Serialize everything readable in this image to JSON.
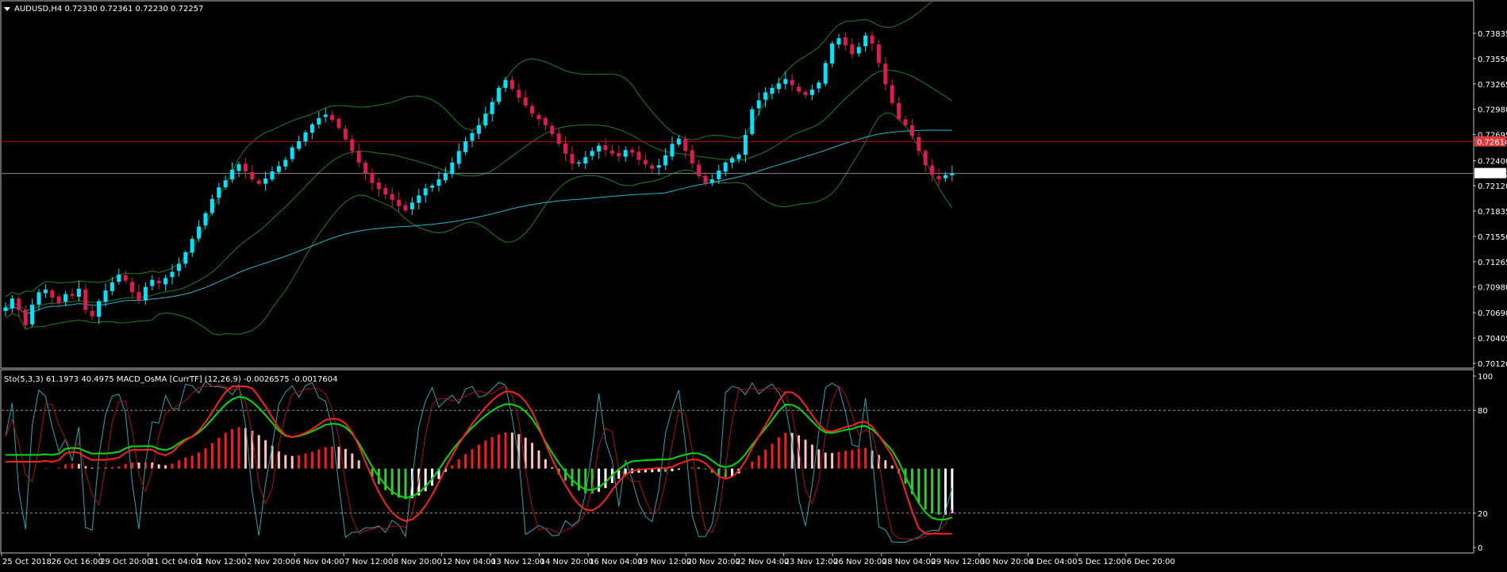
{
  "colors": {
    "background": "#000000",
    "frame": "#c0c0c0",
    "bull_candle": "#00e5ff",
    "bear_candle": "#e0194f",
    "bollinger": "#1e7f1e",
    "moving_average": "#22b8c8",
    "support_line": "#c00000",
    "price_tag": "#e03a3a",
    "macd_positive": "#ff1a1a",
    "macd_positive_light": "#ffc0c0",
    "macd_negative": "#33cc33",
    "macd_negative_light": "#ffffff",
    "signal_green": "#00dd00",
    "signal_red": "#ff2020",
    "stoch_main": "#2aa7b0",
    "stoch_signal": "#b01010"
  },
  "chart_data": [
    {
      "type": "candlestick",
      "panel": "price",
      "title": "AUDUSD,H4  0.72330 0.72361 0.72230 0.72257",
      "symbol_menu_icon": "triangle-down-icon",
      "ylim": [
        0.7012,
        0.7412
      ],
      "y_ticks": [
        "0.73835",
        "0.73550",
        "0.73265",
        "0.72980",
        "0.72695",
        "0.72400",
        "0.72120",
        "0.71835",
        "0.71550",
        "0.71265",
        "0.70980",
        "0.70690",
        "0.70405",
        "0.70120"
      ],
      "y_tick_values": [
        0.73835,
        0.7355,
        0.73265,
        0.7298,
        0.72695,
        0.724,
        0.7212,
        0.71835,
        0.7155,
        0.71265,
        0.7098,
        0.7069,
        0.70405,
        0.7012
      ],
      "current_price_label": "0.72257",
      "current_price": 0.72257,
      "horizontal_line_label": "0.72614",
      "horizontal_line": 0.72614,
      "close_series": [
        0.7075,
        0.7085,
        0.7072,
        0.7055,
        0.7078,
        0.7092,
        0.7095,
        0.7086,
        0.708,
        0.709,
        0.7088,
        0.7096,
        0.7072,
        0.7065,
        0.7082,
        0.7094,
        0.7103,
        0.7112,
        0.7105,
        0.7092,
        0.7083,
        0.7098,
        0.7106,
        0.7102,
        0.7108,
        0.7115,
        0.7124,
        0.7137,
        0.7152,
        0.7166,
        0.7181,
        0.7197,
        0.721,
        0.7218,
        0.723,
        0.7236,
        0.7228,
        0.7219,
        0.7214,
        0.722,
        0.7228,
        0.7234,
        0.7241,
        0.7255,
        0.7262,
        0.7272,
        0.7281,
        0.7288,
        0.7292,
        0.7286,
        0.7277,
        0.7264,
        0.7251,
        0.7238,
        0.7226,
        0.7215,
        0.7208,
        0.7202,
        0.7196,
        0.7189,
        0.7184,
        0.7193,
        0.7201,
        0.7209,
        0.7212,
        0.7219,
        0.7226,
        0.7238,
        0.7251,
        0.7262,
        0.7271,
        0.728,
        0.7293,
        0.7306,
        0.7322,
        0.7331,
        0.7321,
        0.7311,
        0.7302,
        0.7293,
        0.7287,
        0.728,
        0.727,
        0.7259,
        0.7248,
        0.7237,
        0.7238,
        0.7244,
        0.7251,
        0.7257,
        0.7252,
        0.7248,
        0.7245,
        0.7252,
        0.7249,
        0.7241,
        0.7236,
        0.7231,
        0.7235,
        0.7246,
        0.7259,
        0.7265,
        0.7251,
        0.7237,
        0.7223,
        0.7215,
        0.7219,
        0.7229,
        0.7238,
        0.7243,
        0.7247,
        0.7269,
        0.7298,
        0.7308,
        0.7317,
        0.7322,
        0.7327,
        0.7332,
        0.7325,
        0.7318,
        0.7314,
        0.732,
        0.7328,
        0.735,
        0.7372,
        0.7378,
        0.737,
        0.736,
        0.7368,
        0.7381,
        0.7372,
        0.735,
        0.7326,
        0.7305,
        0.7287,
        0.728,
        0.7268,
        0.7251,
        0.7235,
        0.7224,
        0.7219,
        0.7224,
        0.7226
      ],
      "bollinger": {
        "period": 20,
        "deviation": 2
      },
      "moving_average": {
        "period": 100
      }
    },
    {
      "type": "oscillator",
      "panel": "indicator",
      "title": "Sto(5,3,3) 61.1973 40.4975  MACD_OsMA [CurrTF] (12,26,9) -0.0026575 -0.0017604",
      "ylim": [
        0,
        100
      ],
      "y_ticks": [
        "100",
        "80",
        "20",
        "0"
      ],
      "y_tick_values": [
        100,
        80,
        20,
        0
      ],
      "levels": [
        80,
        20
      ],
      "stochastic": {
        "main": 61.1973,
        "signal": 40.4975
      },
      "macd_osma": {
        "main": -0.0026575,
        "signal": -0.0017604
      }
    }
  ],
  "x_axis": {
    "labels": [
      "25 Oct 2018",
      "26 Oct 16:00",
      "29 Oct 20:00",
      "31 Oct 04:00",
      "1 Nov 12:00",
      "2 Nov 20:00",
      "6 Nov 04:00",
      "7 Nov 12:00",
      "8 Nov 20:00",
      "12 Nov 04:00",
      "13 Nov 12:00",
      "14 Nov 20:00",
      "16 Nov 04:00",
      "19 Nov 12:00",
      "20 Nov 20:00",
      "22 Nov 04:00",
      "23 Nov 12:00",
      "26 Nov 20:00",
      "28 Nov 04:00",
      "29 Nov 12:00",
      "30 Nov 20:00",
      "4 Dec 04:00",
      "5 Dec 12:00",
      "6 Dec 20:00"
    ]
  }
}
